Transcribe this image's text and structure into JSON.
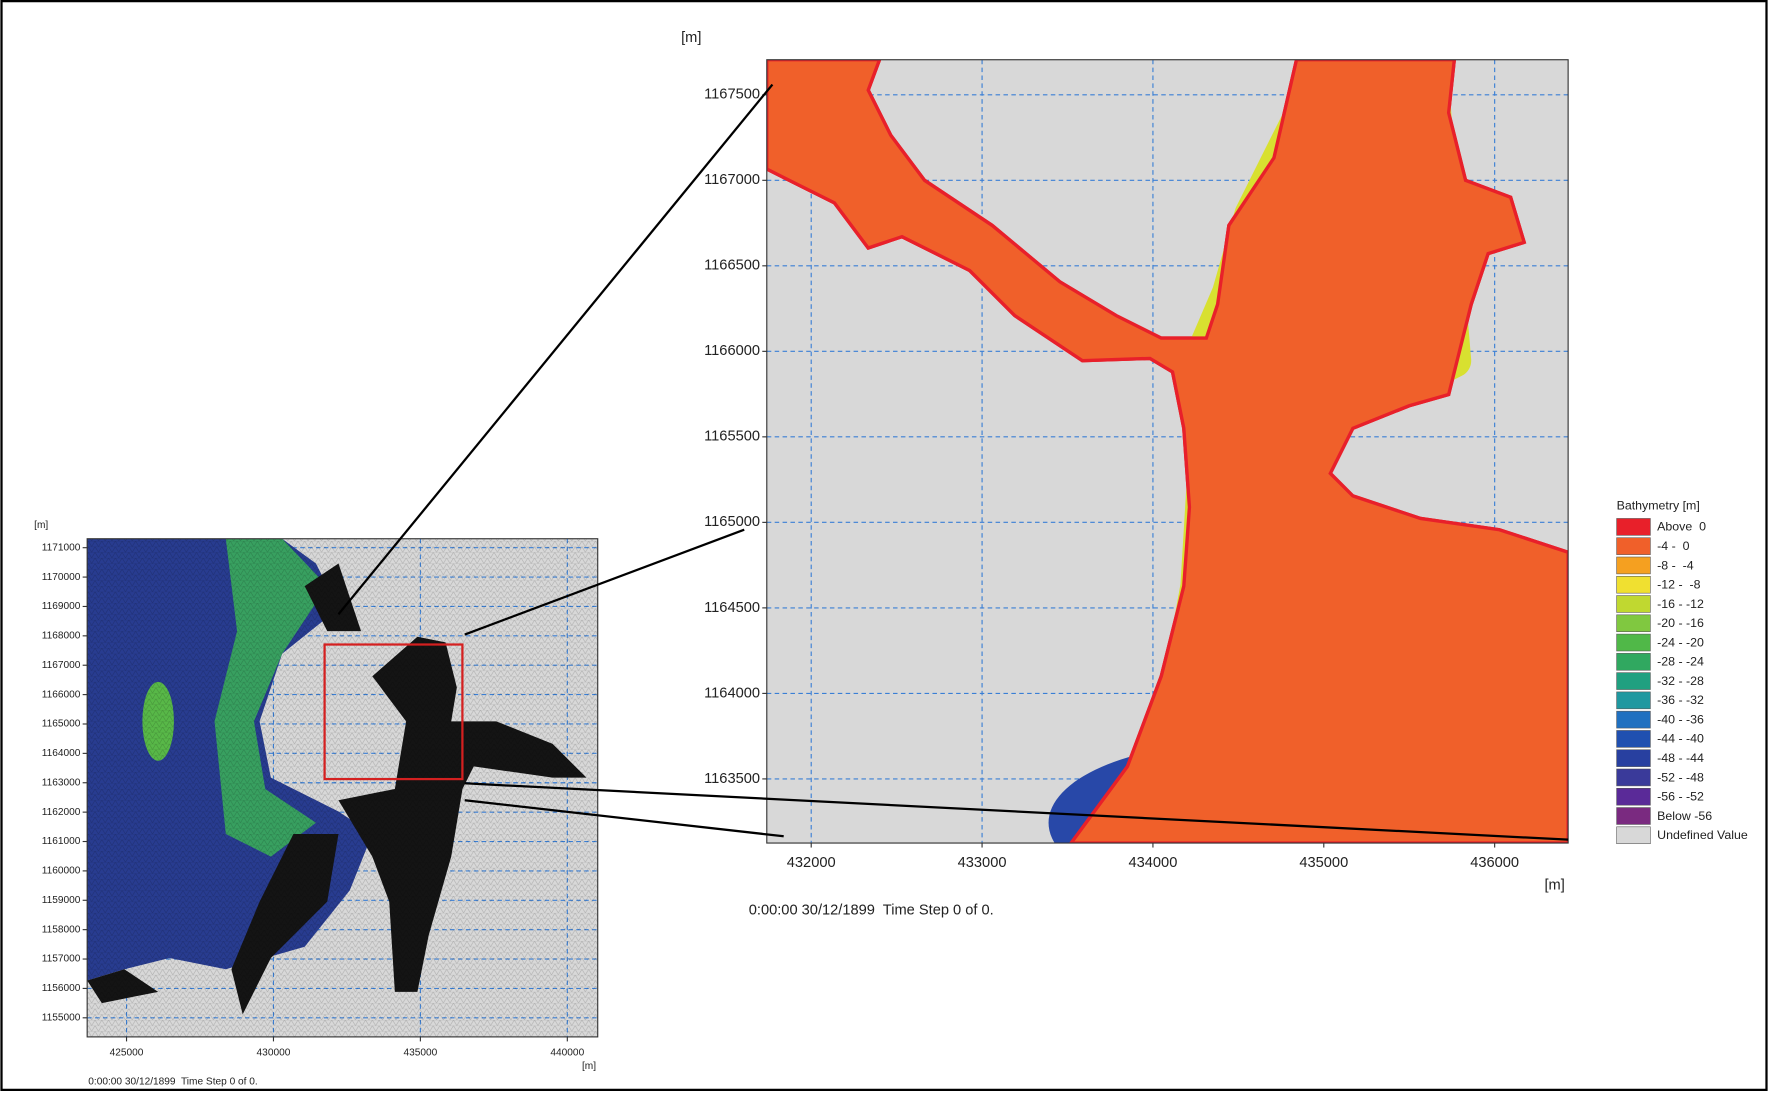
{
  "main_map": {
    "y_unit": "[m]",
    "x_unit": "[m]",
    "xlim": [
      431740,
      436430
    ],
    "ylim": [
      1163125,
      1167705
    ],
    "xticks": [
      432000,
      433000,
      434000,
      435000,
      436000
    ],
    "yticks": [
      1163500,
      1164000,
      1164500,
      1165000,
      1165500,
      1166000,
      1166500,
      1167000,
      1167500
    ],
    "grid": true,
    "footer": "0:00:00 30/12/1899  Time Step 0 of 0."
  },
  "inset_map": {
    "y_unit": "[m]",
    "x_unit": "[m]",
    "xlim": [
      423660,
      441035
    ],
    "ylim": [
      1154350,
      1171305
    ],
    "xticks": [
      425000,
      430000,
      435000,
      440000
    ],
    "yticks": [
      1155000,
      1156000,
      1157000,
      1158000,
      1159000,
      1160000,
      1161000,
      1162000,
      1163000,
      1164000,
      1165000,
      1166000,
      1167000,
      1168000,
      1169000,
      1170000,
      1171000
    ],
    "grid": true,
    "footer": "0:00:00 30/12/1899  Time Step 0 of 0."
  },
  "legend": {
    "title": "Bathymetry [m]",
    "items": [
      {
        "label": "Above  0",
        "color": "#e8202a"
      },
      {
        "label": "-4 -  0",
        "color": "#f0602a"
      },
      {
        "label": "-8 -  -4",
        "color": "#f5a020"
      },
      {
        "label": "-12 -  -8",
        "color": "#f0e030"
      },
      {
        "label": "-16 - -12",
        "color": "#c0d830"
      },
      {
        "label": "-20 - -16",
        "color": "#80c840"
      },
      {
        "label": "-24 - -20",
        "color": "#50b848"
      },
      {
        "label": "-28 - -24",
        "color": "#30a860"
      },
      {
        "label": "-32 - -28",
        "color": "#20a080"
      },
      {
        "label": "-36 - -32",
        "color": "#2098a0"
      },
      {
        "label": "-40 - -36",
        "color": "#2070c0"
      },
      {
        "label": "-44 - -40",
        "color": "#2050b0"
      },
      {
        "label": "-48 - -44",
        "color": "#2840a0"
      },
      {
        "label": "-52 - -48",
        "color": "#3a3a9a"
      },
      {
        "label": "-56 - -52",
        "color": "#5a2a98"
      },
      {
        "label": "Below -56",
        "color": "#7a2a80"
      },
      {
        "label": "Undefined Value",
        "color": "#d8d8d8"
      }
    ]
  }
}
